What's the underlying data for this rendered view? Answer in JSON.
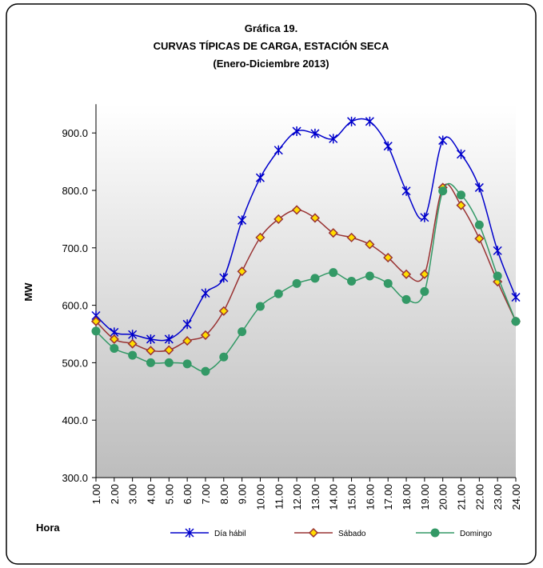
{
  "chart_data": {
    "type": "line",
    "title": [
      "Gráfica 19.",
      "CURVAS TÍPICAS DE CARGA,  ESTACIÓN SECA",
      "(Enero-Diciembre 2013)"
    ],
    "y_label": "MW",
    "x_label": "Hora",
    "categories": [
      "1.00",
      "2.00",
      "3.00",
      "4.00",
      "5.00",
      "6.00",
      "7.00",
      "8.00",
      "9.00",
      "10.00",
      "11.00",
      "12.00",
      "13.00",
      "14.00",
      "15.00",
      "16.00",
      "17.00",
      "18.00",
      "19.00",
      "20.00",
      "21.00",
      "22.00",
      "23.00",
      "24.00"
    ],
    "series": [
      {
        "name": "Día hábil",
        "color": "#0000cc",
        "marker": "star",
        "values": [
          582,
          553,
          549,
          541,
          541,
          567,
          621,
          648,
          748,
          822,
          870,
          903,
          899,
          890,
          920,
          920,
          877,
          799,
          753,
          887,
          863,
          805,
          695,
          614
        ]
      },
      {
        "name": "Sábado",
        "color": "#993333",
        "marker": "diamond",
        "values": [
          572,
          541,
          533,
          521,
          522,
          538,
          548,
          590,
          659,
          718,
          750,
          766,
          752,
          726,
          718,
          706,
          683,
          654,
          654,
          805,
          774,
          716,
          641,
          572
        ]
      },
      {
        "name": "Domingo",
        "color": "#339966",
        "marker": "circle",
        "values": [
          555,
          525,
          513,
          500,
          500,
          498,
          485,
          510,
          554,
          598,
          620,
          638,
          647,
          657,
          642,
          651,
          638,
          610,
          624,
          799,
          792,
          740,
          651,
          572
        ]
      }
    ],
    "ylim": [
      300,
      950
    ],
    "yticks": [
      {
        "value": 300,
        "label": "300.0"
      },
      {
        "value": 400,
        "label": "400.0"
      },
      {
        "value": 500,
        "label": "500.0"
      },
      {
        "value": 600,
        "label": "600.0"
      },
      {
        "value": 700,
        "label": "700.0"
      },
      {
        "value": 800,
        "label": "800.0"
      },
      {
        "value": 900,
        "label": "900.0"
      }
    ],
    "legend": "bottom"
  }
}
